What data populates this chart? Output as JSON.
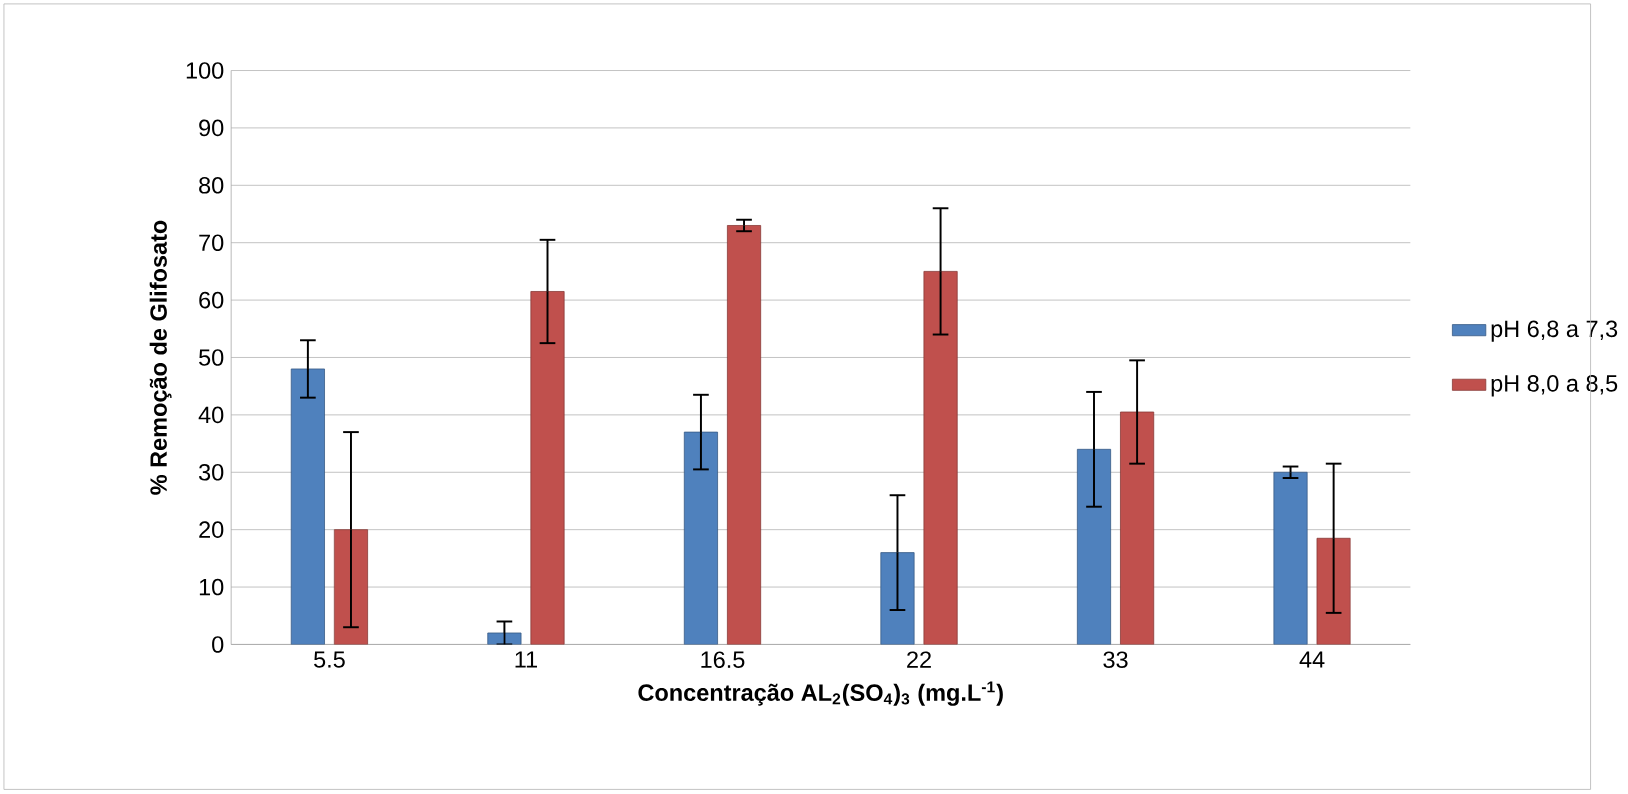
{
  "chart_data": {
    "type": "bar",
    "xlabel": "Concentração AL$_{2}$(SO$_{4}$)$_{3}$ (mg.L$^{-1}$)",
    "ylabel": "% Remoção de Glifosato",
    "categories": [
      "5.5",
      "11",
      "16.5",
      "22",
      "33",
      "44"
    ],
    "series": [
      {
        "name": "pH 6,8 a 7,3",
        "color": "#4f81bd",
        "values": [
          48,
          2,
          37,
          16,
          34,
          30
        ],
        "errors": [
          5,
          2,
          6.5,
          10,
          10,
          1
        ]
      },
      {
        "name": "pH 8,0 a 8,5",
        "color": "#c0504d",
        "values": [
          20,
          61.5,
          73,
          65,
          40.5,
          18.5
        ],
        "errors": [
          17,
          9,
          1,
          11,
          9,
          13
        ]
      }
    ],
    "ylim": [
      0,
      100
    ],
    "yticks": [
      0,
      10,
      20,
      30,
      40,
      50,
      60,
      70,
      80,
      90,
      100
    ],
    "grid": "y",
    "legend": "right"
  }
}
